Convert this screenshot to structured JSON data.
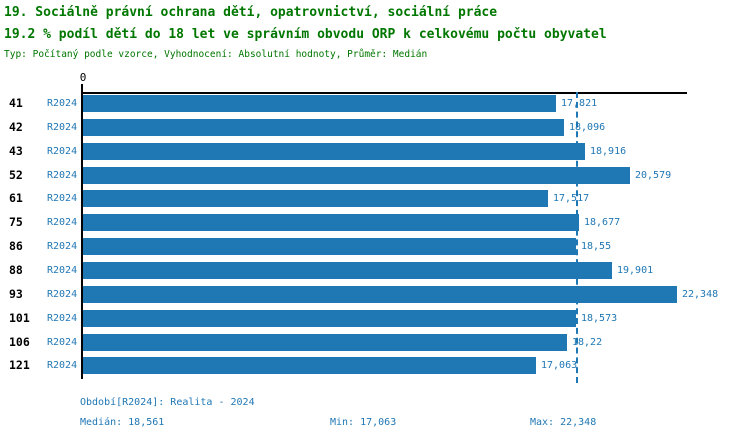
{
  "header": {
    "title_line1": "19. Sociálně právní ochrana dětí, opatrovnictví, sociální práce",
    "title_line2": "19.2 % podíl dětí do 18 let ve správním obvodu ORP k celkovému počtu obyvatel",
    "subtitle": "Typ: Počítaný podle vzorce, Vyhodnocení: Absolutní hodnoty, Průměr: Medián"
  },
  "colors": {
    "title_green": "#007700",
    "bar_blue": "#1f77b4",
    "label_blue": "#1f77b4",
    "axis_black": "#000000"
  },
  "chart_data": {
    "type": "bar",
    "orientation": "horizontal",
    "title": "19. Sociálně právní ochrana dětí, opatrovnictví, sociální práce",
    "subtitle": "19.2 % podíl dětí do 18 let ve správním obvodu ORP k celkovému počtu obyvatel",
    "axis_zero_label": "0",
    "series_label": "R2024",
    "categories": [
      "41",
      "42",
      "43",
      "52",
      "61",
      "75",
      "86",
      "88",
      "93",
      "101",
      "106",
      "121"
    ],
    "values": [
      17821,
      18096,
      18916,
      20579,
      17517,
      18677,
      18550,
      19901,
      22348,
      18573,
      18220,
      17063
    ],
    "value_labels": [
      "17,821",
      "18,096",
      "18,916",
      "20,579",
      "17,517",
      "18,677",
      "18,55",
      "19,901",
      "22,348",
      "18,573",
      "18,22",
      "17,063"
    ],
    "median": 18561,
    "min": 17063,
    "max": 22348,
    "xlim": [
      0,
      22725
    ],
    "grid": false,
    "legend_position": "none",
    "median_line": true
  },
  "footer": {
    "period": "Období[R2024]: Realita - 2024",
    "median": "Medián: 18,561",
    "min": "Min: 17,063",
    "max": "Max: 22,348"
  }
}
